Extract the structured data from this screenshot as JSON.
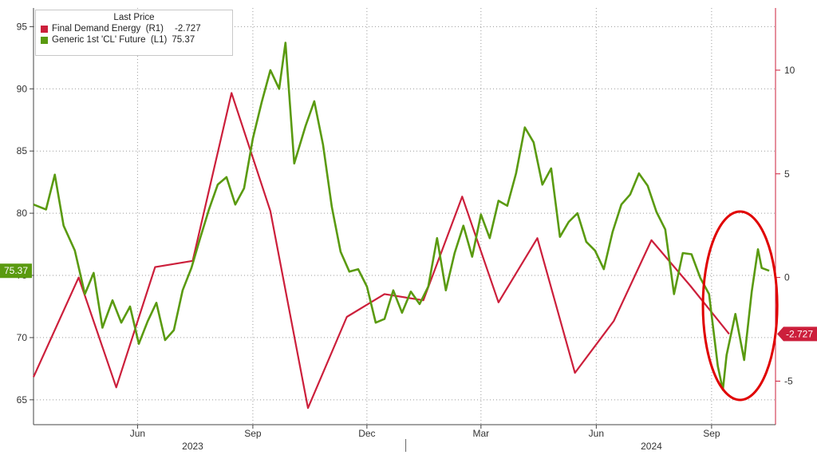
{
  "chart_data": {
    "type": "line",
    "title": "",
    "legend": {
      "title": "Last Price",
      "entries": [
        {
          "label": "Final Demand Energy  (R1)",
          "value": "-2.727",
          "color": "#cc1f3b"
        },
        {
          "label": "Generic 1st 'CL' Future  (L1)",
          "value": "75.37",
          "color": "#5a9a10"
        }
      ],
      "position": "top-left"
    },
    "left_axis": {
      "ticks": [
        65,
        70,
        75,
        80,
        85,
        90,
        95
      ],
      "range": [
        63,
        96.5
      ]
    },
    "right_axis": {
      "ticks": [
        -5,
        0,
        5,
        10
      ],
      "range": [
        -7.1,
        13.0
      ]
    },
    "x_range": [
      "2023-03-10",
      "2024-10-22"
    ],
    "x_ticks": [
      {
        "date": "2023-06-01",
        "label": "Jun"
      },
      {
        "date": "2023-09-01",
        "label": "Sep"
      },
      {
        "date": "2023-12-01",
        "label": "Dec"
      },
      {
        "date": "2024-03-01",
        "label": "Mar"
      },
      {
        "date": "2024-06-01",
        "label": "Jun"
      },
      {
        "date": "2024-09-01",
        "label": "Sep"
      }
    ],
    "year_labels": [
      {
        "date": "2023-07-15",
        "label": "2023"
      },
      {
        "date": "2024-07-15",
        "label": "2024"
      }
    ],
    "last_value_tags": {
      "left": "75.37",
      "right": "-2.727"
    },
    "grid": true,
    "series": [
      {
        "name": "Final Demand Energy",
        "axis": "right",
        "color": "#cc1f3b",
        "x": [
          "2023-03-10",
          "2023-04-15",
          "2023-05-15",
          "2023-06-15",
          "2023-07-15",
          "2023-08-15",
          "2023-09-15",
          "2023-10-15",
          "2023-11-15",
          "2023-12-15",
          "2024-01-15",
          "2024-02-15",
          "2024-03-15",
          "2024-04-15",
          "2024-05-15",
          "2024-06-15",
          "2024-07-15",
          "2024-08-15",
          "2024-09-15"
        ],
        "values": [
          -4.8,
          0.0,
          -5.3,
          0.5,
          0.8,
          8.9,
          3.2,
          -6.3,
          -1.9,
          -0.8,
          -1.1,
          3.9,
          -1.2,
          1.9,
          -4.6,
          -2.1,
          1.8,
          -0.4,
          -2.727
        ]
      },
      {
        "name": "Generic 1st 'CL' Future",
        "axis": "left",
        "color": "#5a9a10",
        "x": [
          "2023-03-10",
          "2023-03-20",
          "2023-03-27",
          "2023-04-03",
          "2023-04-12",
          "2023-04-20",
          "2023-04-27",
          "2023-05-04",
          "2023-05-12",
          "2023-05-19",
          "2023-05-26",
          "2023-06-02",
          "2023-06-09",
          "2023-06-16",
          "2023-06-23",
          "2023-06-30",
          "2023-07-07",
          "2023-07-14",
          "2023-07-21",
          "2023-07-28",
          "2023-08-04",
          "2023-08-11",
          "2023-08-18",
          "2023-08-25",
          "2023-09-01",
          "2023-09-08",
          "2023-09-15",
          "2023-09-22",
          "2023-09-27",
          "2023-10-04",
          "2023-10-13",
          "2023-10-20",
          "2023-10-27",
          "2023-11-03",
          "2023-11-10",
          "2023-11-17",
          "2023-11-24",
          "2023-12-01",
          "2023-12-08",
          "2023-12-15",
          "2023-12-22",
          "2023-12-29",
          "2024-01-05",
          "2024-01-12",
          "2024-01-19",
          "2024-01-26",
          "2024-02-02",
          "2024-02-09",
          "2024-02-16",
          "2024-02-23",
          "2024-03-01",
          "2024-03-08",
          "2024-03-15",
          "2024-03-22",
          "2024-03-29",
          "2024-04-05",
          "2024-04-12",
          "2024-04-19",
          "2024-04-26",
          "2024-05-03",
          "2024-05-10",
          "2024-05-17",
          "2024-05-24",
          "2024-05-31",
          "2024-06-07",
          "2024-06-14",
          "2024-06-21",
          "2024-06-28",
          "2024-07-05",
          "2024-07-12",
          "2024-07-19",
          "2024-07-26",
          "2024-08-02",
          "2024-08-09",
          "2024-08-16",
          "2024-08-23",
          "2024-08-30",
          "2024-09-06",
          "2024-09-10",
          "2024-09-13",
          "2024-09-20",
          "2024-09-27",
          "2024-10-03",
          "2024-10-08",
          "2024-10-11",
          "2024-10-17"
        ],
        "values": [
          80.7,
          80.3,
          83.1,
          79.0,
          77.0,
          73.5,
          75.2,
          70.8,
          73.0,
          71.2,
          72.5,
          69.5,
          71.3,
          72.8,
          69.8,
          70.6,
          73.8,
          75.6,
          78.0,
          80.3,
          82.3,
          82.9,
          80.7,
          82.0,
          86.0,
          88.9,
          91.5,
          90.0,
          93.7,
          84.0,
          87.0,
          89.0,
          85.5,
          80.5,
          76.9,
          75.3,
          75.5,
          74.1,
          71.2,
          71.5,
          73.8,
          72.0,
          73.7,
          72.7,
          74.1,
          78.0,
          73.8,
          76.8,
          79.0,
          76.5,
          79.9,
          78.0,
          81.0,
          80.6,
          83.2,
          86.9,
          85.7,
          82.3,
          83.6,
          78.1,
          79.3,
          80.0,
          77.7,
          77.0,
          75.5,
          78.5,
          80.7,
          81.5,
          83.2,
          82.2,
          80.1,
          78.7,
          73.5,
          76.8,
          76.7,
          74.8,
          73.5,
          67.7,
          65.8,
          68.6,
          71.9,
          68.2,
          73.7,
          77.1,
          75.6,
          75.37
        ]
      }
    ],
    "annotation": {
      "shape": "ellipse",
      "color": "#e00000",
      "around_dates": [
        "2024-09-03",
        "2024-10-17"
      ]
    }
  }
}
